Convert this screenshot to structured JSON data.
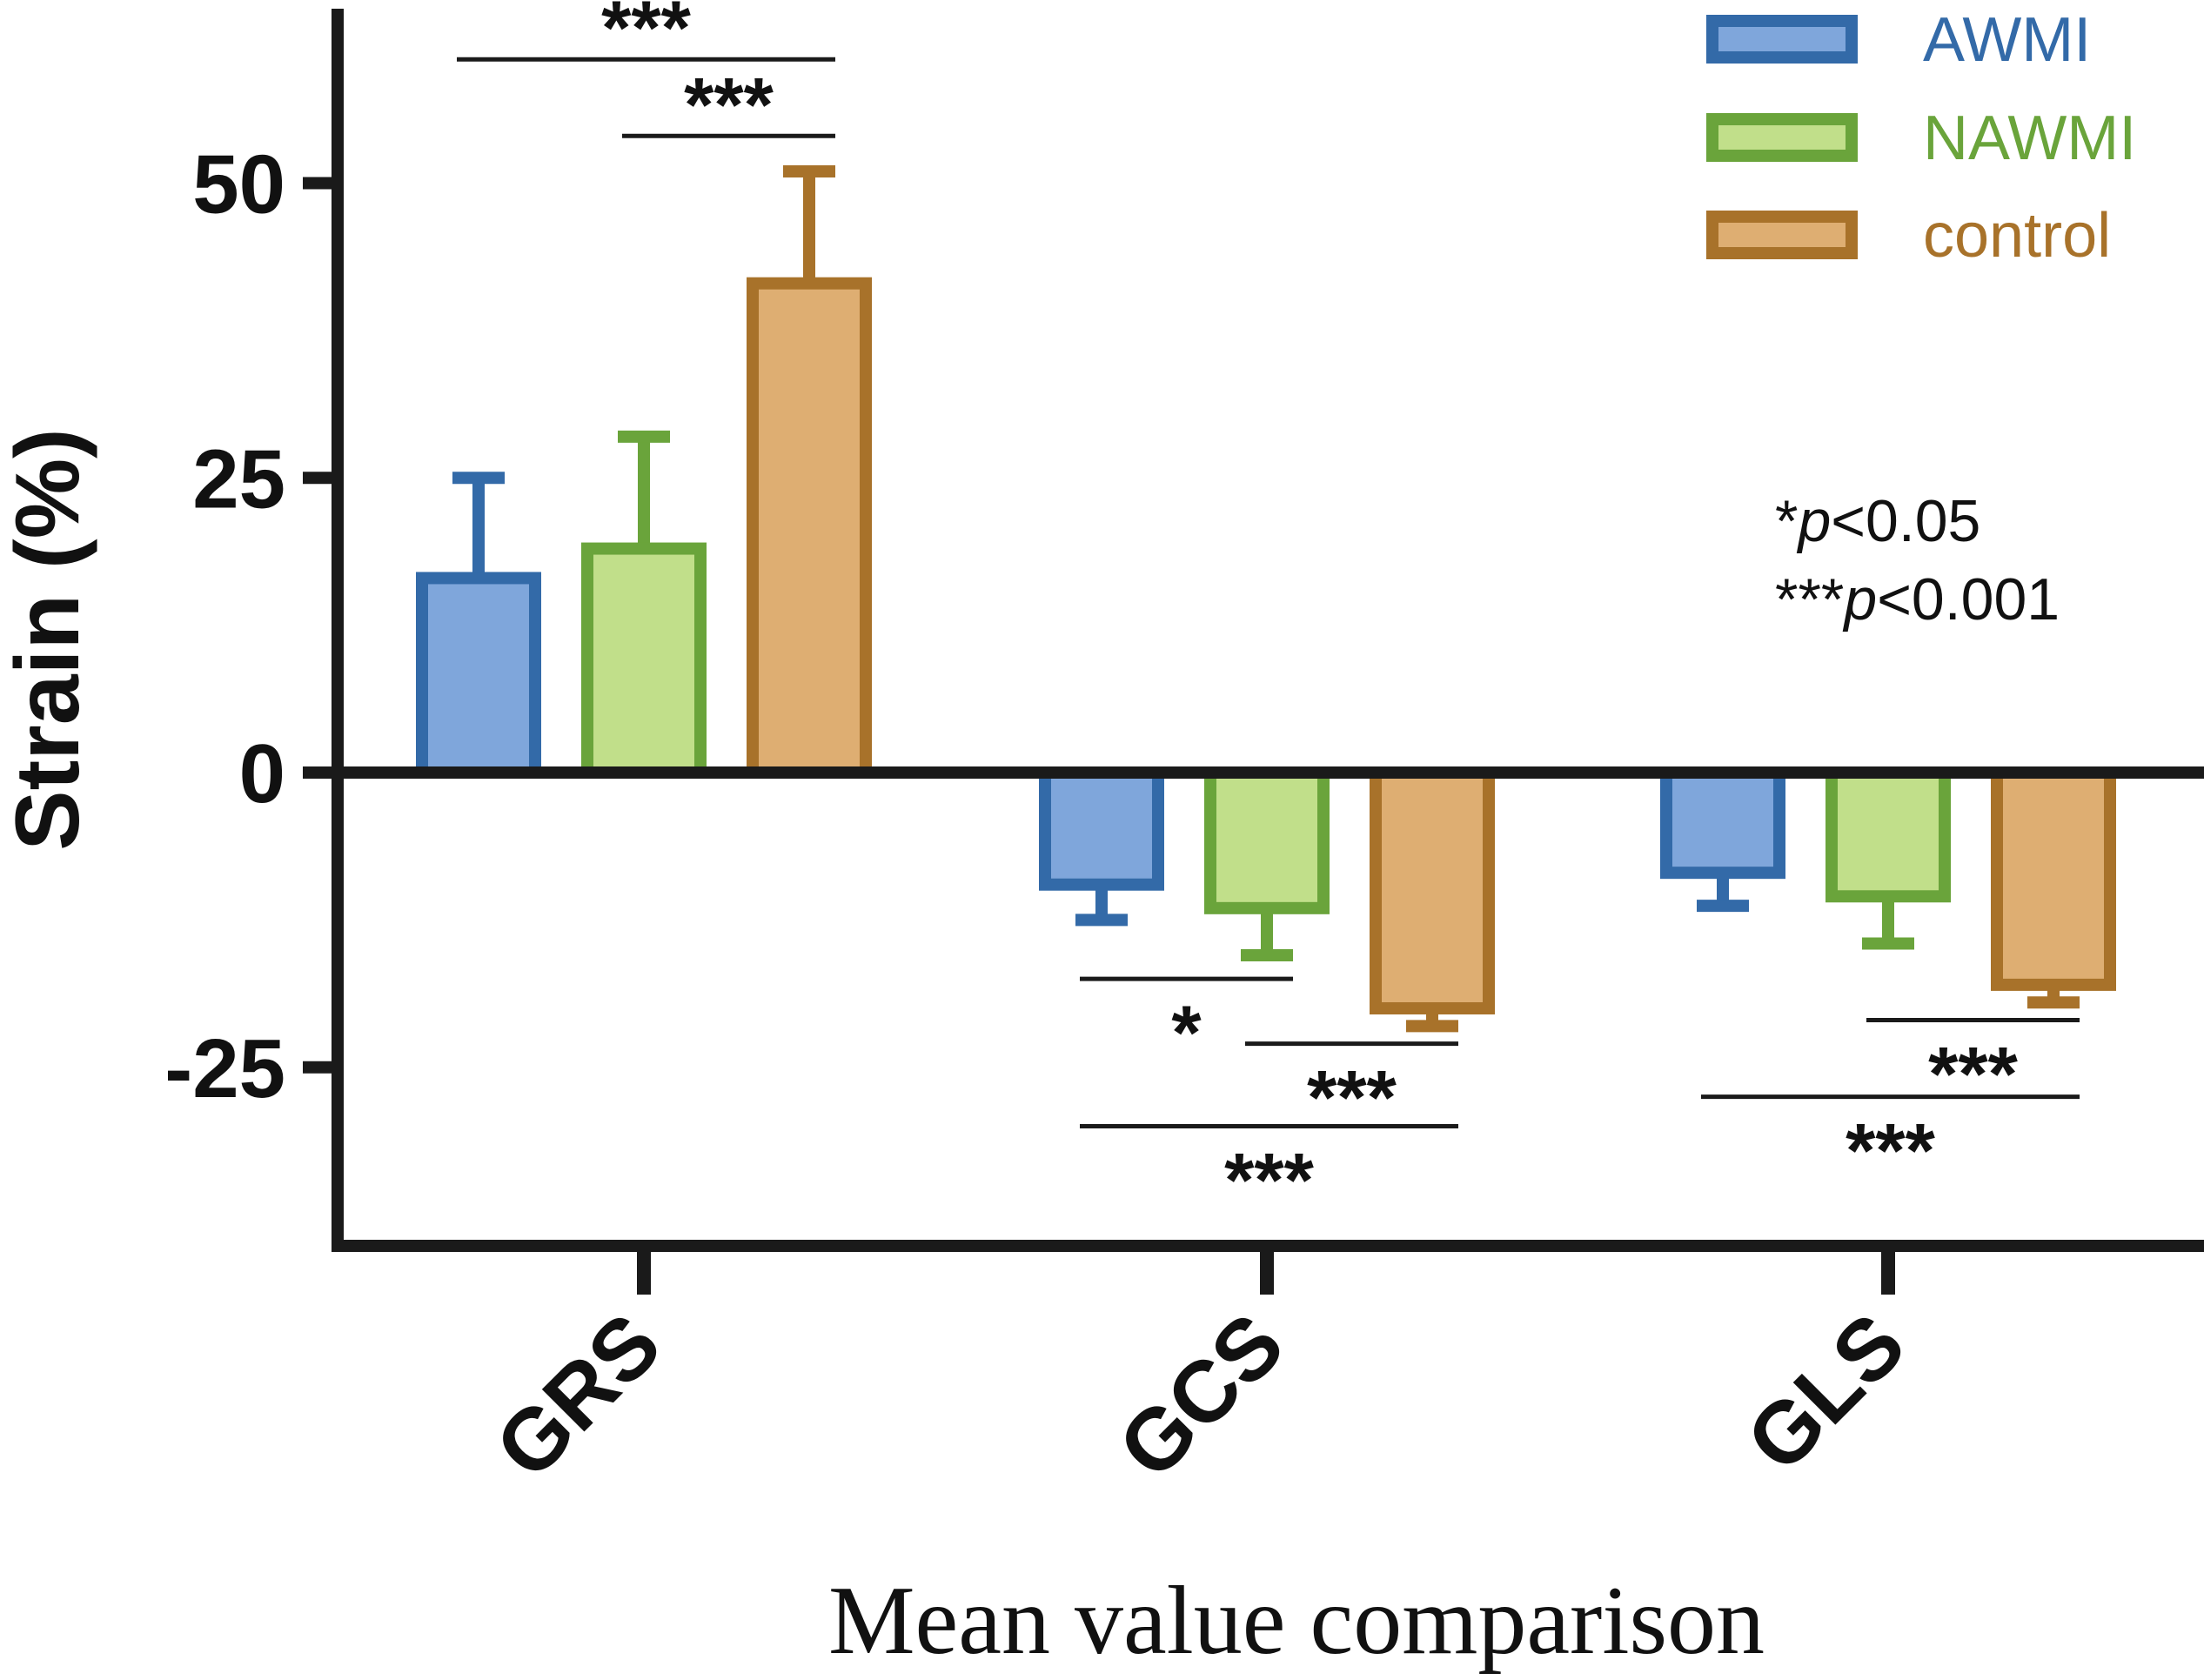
{
  "chart_data": {
    "type": "bar",
    "title": "",
    "xlabel": "Mean value comparison",
    "ylabel": "Strain (%)",
    "ylim": [
      -40,
      65
    ],
    "yticks": [
      50,
      25,
      0,
      -25
    ],
    "ytick_labels": [
      "50",
      "25",
      "0",
      "-25"
    ],
    "categories": [
      "GRS",
      "GCS",
      "GLS"
    ],
    "series": [
      {
        "name": "AWMI",
        "color": "#336aa8",
        "fill": "#7fa6db",
        "values": [
          16.5,
          -9.5,
          -8.5
        ],
        "errors": [
          8.5,
          3.0,
          2.8
        ]
      },
      {
        "name": "NAWMI",
        "color": "#6aa43b",
        "fill": "#c1df8a",
        "values": [
          19.0,
          -11.5,
          -10.5
        ],
        "errors": [
          9.5,
          4.0,
          4.0
        ]
      },
      {
        "name": "control",
        "color": "#a8722a",
        "fill": "#deae72",
        "values": [
          41.5,
          -20.0,
          -18.0
        ],
        "errors": [
          9.5,
          1.5,
          1.5
        ]
      }
    ],
    "legend": {
      "position": "top-right",
      "labels": [
        "AWMI",
        "NAWMI",
        "control"
      ]
    },
    "significance": [
      {
        "category": "GRS",
        "from": "AWMI",
        "to": "control",
        "y": 60.5,
        "label": "***",
        "label_side": "above"
      },
      {
        "category": "GRS",
        "from": "NAWMI",
        "to": "control",
        "y": 54,
        "label": "***",
        "label_side": "above"
      },
      {
        "category": "GCS",
        "from": "AWMI",
        "to": "NAWMI",
        "y": -17.5,
        "label": "*",
        "label_side": "below"
      },
      {
        "category": "GCS",
        "from": "NAWMI",
        "to": "control",
        "y": -23,
        "label": "***",
        "label_side": "below"
      },
      {
        "category": "GCS",
        "from": "AWMI",
        "to": "control",
        "y": -30,
        "label": "***",
        "label_side": "below"
      },
      {
        "category": "GLS",
        "from": "NAWMI",
        "to": "control",
        "y": -21,
        "label": "***",
        "label_side": "below"
      },
      {
        "category": "GLS",
        "from": "AWMI",
        "to": "control",
        "y": -27.5,
        "label": "***",
        "label_side": "below"
      }
    ],
    "note": {
      "line1_stars": "*",
      "line1_p": "p",
      "line1_rest": "<0.05",
      "line2_stars": "***",
      "line2_p": "p",
      "line2_rest": "<0.001"
    }
  }
}
